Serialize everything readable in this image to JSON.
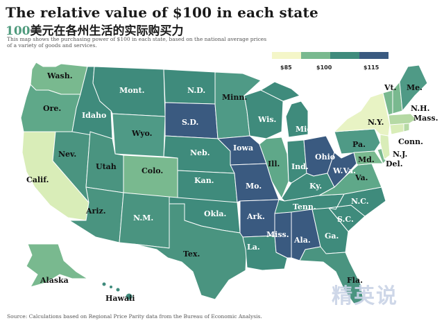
{
  "title": "The relative value of $100 in each state",
  "subtitle_number": "100",
  "subtitle_cn": "美元在各州生活的实际购买力",
  "description": "This map shows the purchasing power of $100 in each state, based on the national average prices of a variety of goods and services.",
  "legend": {
    "colors": [
      "#f4f6c8",
      "#79b98f",
      "#3f8b7c",
      "#3a5a80"
    ],
    "labels": [
      "$85",
      "$100",
      "$115"
    ]
  },
  "states": {
    "wa": "Wash.",
    "or": "Ore.",
    "ca": "Calif.",
    "nv": "Nev.",
    "id": "Idaho",
    "mt": "Mont.",
    "wy": "Wyo.",
    "ut": "Utah",
    "az": "Ariz.",
    "co": "Colo.",
    "nm": "N.M.",
    "nd": "N.D.",
    "sd": "S.D.",
    "ne": "Neb.",
    "ks": "Kan.",
    "ok": "Okla.",
    "tx": "Tex.",
    "mn": "Minn.",
    "ia": "Iowa",
    "mo": "Mo.",
    "ar": "Ark.",
    "la": "La.",
    "wi": "Wis.",
    "il": "Ill.",
    "mi": "Mich.",
    "in": "Ind.",
    "oh": "Ohio",
    "ky": "Ky.",
    "tn": "Tenn.",
    "ms": "Miss.",
    "al": "Ala.",
    "ga": "Ga.",
    "fl": "Fla.",
    "sc": "S.C.",
    "nc": "N.C.",
    "va": "Va.",
    "wv": "W.Va.",
    "pa": "Pa.",
    "ny": "N.Y.",
    "vt": "Vt.",
    "me": "Me.",
    "nh": "N.H.",
    "ma": "Mass.",
    "ct": "Conn.",
    "nj": "N.J.",
    "de": "Del.",
    "md": "Md.",
    "ak": "Alaska",
    "hi": "Hawaii"
  },
  "source": "Source: Calculations based on Regional Price Parity data from the Bureau of Economic Analysis.",
  "watermark": "精英说"
}
